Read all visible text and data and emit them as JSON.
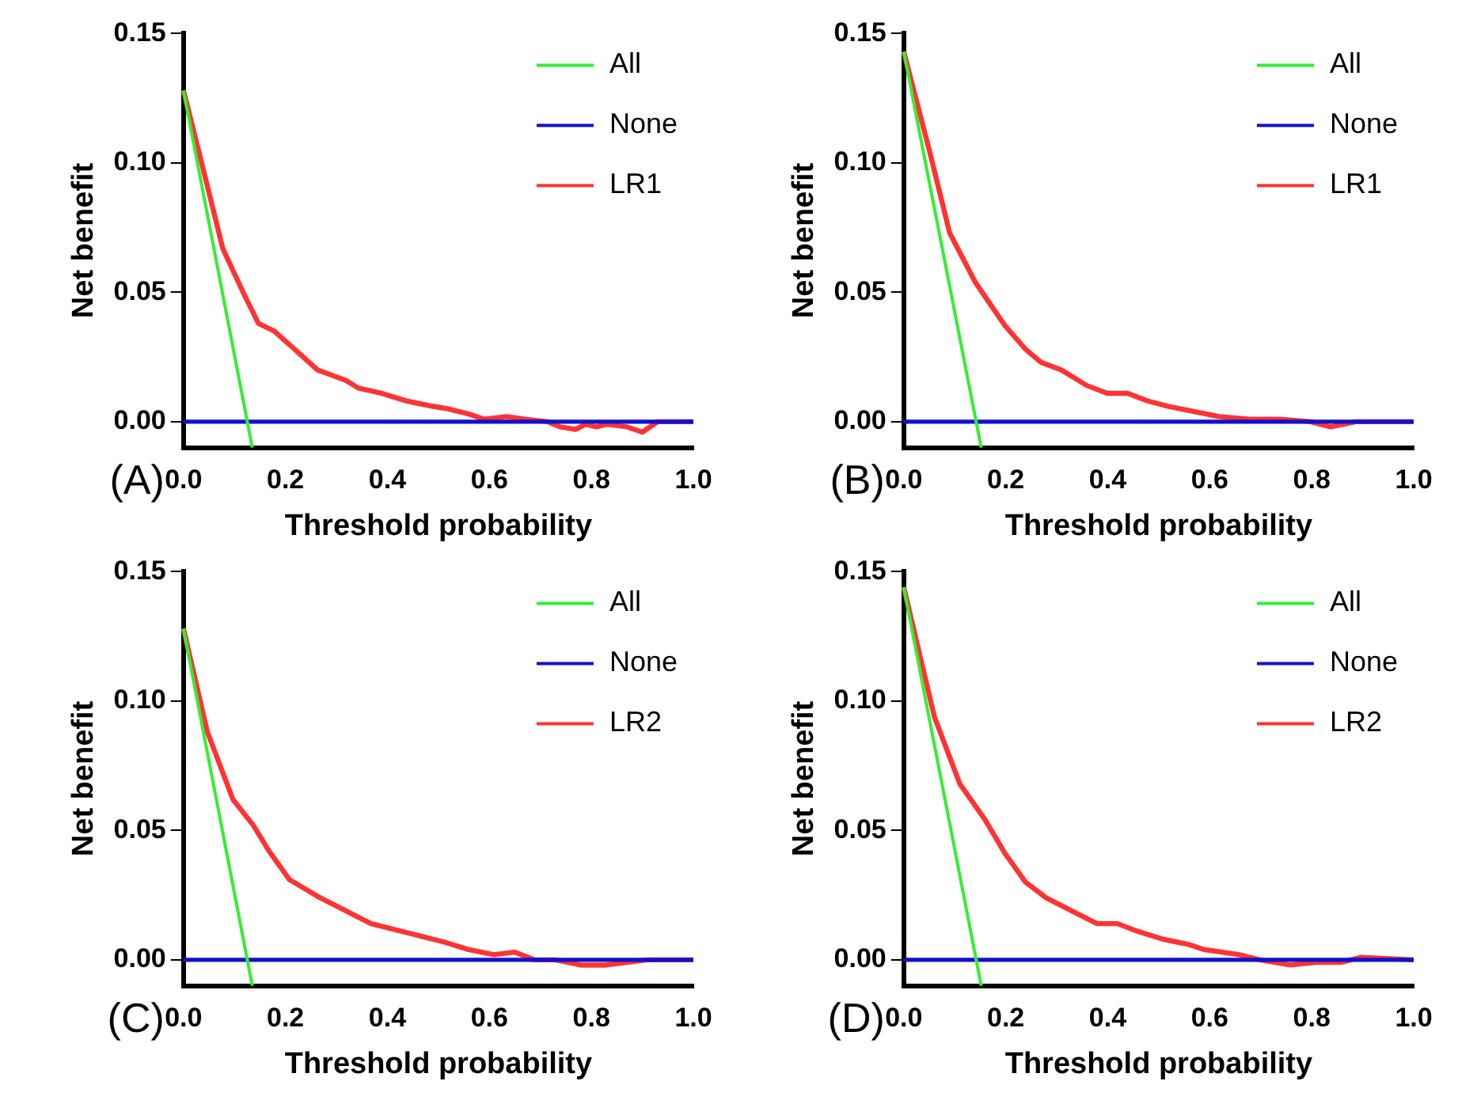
{
  "chart_data": [
    {
      "type": "line",
      "xlabel": "Threshold probability",
      "ylabel": "Net benefit",
      "annotations": [
        "(A)"
      ],
      "xlim": [
        0,
        1
      ],
      "ylim": [
        -0.01,
        0.15
      ],
      "xticks": [
        {
          "value": 0,
          "label": "0.0"
        },
        {
          "value": 0.2,
          "label": "0.2"
        },
        {
          "value": 0.4,
          "label": "0.4"
        },
        {
          "value": 0.6,
          "label": "0.6"
        },
        {
          "value": 0.8,
          "label": "0.8"
        },
        {
          "value": 1,
          "label": "1.0"
        }
      ],
      "yticks": [
        {
          "value": 0,
          "label": "0.00"
        },
        {
          "value": 0.05,
          "label": "0.05"
        },
        {
          "value": 0.1,
          "label": "0.10"
        },
        {
          "value": 0.15,
          "label": "0.15"
        }
      ],
      "grid": false,
      "legend": "top right",
      "marker": "none",
      "line_style": "solid",
      "series": [
        {
          "name": "All",
          "color": "#33ee33",
          "x": [
            0,
            0.135
          ],
          "values": [
            0.128,
            -0.01
          ]
        },
        {
          "name": "None",
          "color": "#1111cc",
          "x": [
            0,
            1
          ],
          "values": [
            0,
            0
          ]
        },
        {
          "name": "LR1",
          "color": "#ff3333",
          "x": [
            0,
            0.037,
            0.077,
            0.117,
            0.147,
            0.178,
            0.218,
            0.263,
            0.318,
            0.343,
            0.388,
            0.438,
            0.488,
            0.519,
            0.559,
            0.589,
            0.634,
            0.669,
            0.714,
            0.739,
            0.769,
            0.789,
            0.81,
            0.83,
            0.87,
            0.9,
            0.93,
            1
          ],
          "values": [
            0.128,
            0.099,
            0.067,
            0.05,
            0.038,
            0.035,
            0.028,
            0.02,
            0.016,
            0.013,
            0.011,
            0.008,
            0.006,
            0.005,
            0.003,
            0.001,
            0.002,
            0.001,
            0,
            -0.002,
            -0.003,
            -0.001,
            -0.002,
            -0.001,
            -0.002,
            -0.004,
            0,
            0
          ]
        }
      ]
    },
    {
      "type": "line",
      "xlabel": "Threshold probability",
      "ylabel": "Net benefit",
      "annotations": [
        "(B)"
      ],
      "xlim": [
        0,
        1
      ],
      "ylim": [
        -0.01,
        0.15
      ],
      "xticks": [
        {
          "value": 0,
          "label": "0.0"
        },
        {
          "value": 0.2,
          "label": "0.2"
        },
        {
          "value": 0.4,
          "label": "0.4"
        },
        {
          "value": 0.6,
          "label": "0.6"
        },
        {
          "value": 0.8,
          "label": "0.8"
        },
        {
          "value": 1,
          "label": "1.0"
        }
      ],
      "yticks": [
        {
          "value": 0,
          "label": "0.00"
        },
        {
          "value": 0.05,
          "label": "0.05"
        },
        {
          "value": 0.1,
          "label": "0.10"
        },
        {
          "value": 0.15,
          "label": "0.15"
        }
      ],
      "grid": false,
      "legend": "top right",
      "marker": "none",
      "line_style": "solid",
      "series": [
        {
          "name": "All",
          "color": "#33ee33",
          "x": [
            0,
            0.152
          ],
          "values": [
            0.143,
            -0.01
          ]
        },
        {
          "name": "None",
          "color": "#1111cc",
          "x": [
            0,
            1
          ],
          "values": [
            0,
            0
          ]
        },
        {
          "name": "LR1",
          "color": "#ff3333",
          "x": [
            0,
            0.05,
            0.09,
            0.14,
            0.199,
            0.239,
            0.269,
            0.309,
            0.359,
            0.399,
            0.439,
            0.479,
            0.518,
            0.568,
            0.618,
            0.678,
            0.738,
            0.798,
            0.837,
            0.887,
            1
          ],
          "values": [
            0.143,
            0.105,
            0.073,
            0.054,
            0.037,
            0.028,
            0.023,
            0.02,
            0.014,
            0.011,
            0.011,
            0.008,
            0.006,
            0.004,
            0.002,
            0.001,
            0.001,
            0,
            -0.002,
            0,
            0
          ]
        }
      ]
    },
    {
      "type": "line",
      "xlabel": "Threshold probability",
      "ylabel": "Net benefit",
      "annotations": [
        "(C)"
      ],
      "xlim": [
        0,
        1
      ],
      "ylim": [
        -0.01,
        0.15
      ],
      "xticks": [
        {
          "value": 0,
          "label": "0.0"
        },
        {
          "value": 0.2,
          "label": "0.2"
        },
        {
          "value": 0.4,
          "label": "0.4"
        },
        {
          "value": 0.6,
          "label": "0.6"
        },
        {
          "value": 0.8,
          "label": "0.8"
        },
        {
          "value": 1,
          "label": "1.0"
        }
      ],
      "yticks": [
        {
          "value": 0,
          "label": "0.00"
        },
        {
          "value": 0.05,
          "label": "0.05"
        },
        {
          "value": 0.1,
          "label": "0.10"
        },
        {
          "value": 0.15,
          "label": "0.15"
        }
      ],
      "grid": false,
      "legend": "top right",
      "marker": "none",
      "line_style": "solid",
      "series": [
        {
          "name": "All",
          "color": "#33ee33",
          "x": [
            0,
            0.135
          ],
          "values": [
            0.128,
            -0.01
          ]
        },
        {
          "name": "None",
          "color": "#1111cc",
          "x": [
            0,
            1
          ],
          "values": [
            0,
            0
          ]
        },
        {
          "name": "LR2",
          "color": "#ff3333",
          "x": [
            0,
            0.047,
            0.097,
            0.137,
            0.168,
            0.208,
            0.268,
            0.288,
            0.338,
            0.368,
            0.408,
            0.468,
            0.509,
            0.559,
            0.609,
            0.649,
            0.689,
            0.729,
            0.779,
            0.829,
            0.87,
            0.91,
            1
          ],
          "values": [
            0.128,
            0.088,
            0.062,
            0.052,
            0.042,
            0.031,
            0.024,
            0.022,
            0.017,
            0.014,
            0.012,
            0.009,
            0.007,
            0.004,
            0.002,
            0.003,
            0,
            0,
            -0.002,
            -0.002,
            -0.001,
            0,
            0
          ]
        }
      ]
    },
    {
      "type": "line",
      "xlabel": "Threshold probability",
      "ylabel": "Net benefit",
      "annotations": [
        "(D)"
      ],
      "xlim": [
        0,
        1
      ],
      "ylim": [
        -0.01,
        0.15
      ],
      "xticks": [
        {
          "value": 0,
          "label": "0.0"
        },
        {
          "value": 0.2,
          "label": "0.2"
        },
        {
          "value": 0.4,
          "label": "0.4"
        },
        {
          "value": 0.6,
          "label": "0.6"
        },
        {
          "value": 0.8,
          "label": "0.8"
        },
        {
          "value": 1,
          "label": "1.0"
        }
      ],
      "yticks": [
        {
          "value": 0,
          "label": "0.00"
        },
        {
          "value": 0.05,
          "label": "0.05"
        },
        {
          "value": 0.1,
          "label": "0.10"
        },
        {
          "value": 0.15,
          "label": "0.15"
        }
      ],
      "grid": false,
      "legend": "top right",
      "marker": "none",
      "line_style": "solid",
      "series": [
        {
          "name": "All",
          "color": "#33ee33",
          "x": [
            0,
            0.152
          ],
          "values": [
            0.144,
            -0.01
          ]
        },
        {
          "name": "None",
          "color": "#1111cc",
          "x": [
            0,
            1
          ],
          "values": [
            0,
            0
          ]
        },
        {
          "name": "LR2",
          "color": "#ff3333",
          "x": [
            0,
            0.06,
            0.11,
            0.16,
            0.199,
            0.239,
            0.279,
            0.339,
            0.379,
            0.419,
            0.459,
            0.508,
            0.558,
            0.588,
            0.658,
            0.698,
            0.758,
            0.808,
            0.857,
            0.897,
            1
          ],
          "values": [
            0.144,
            0.094,
            0.068,
            0.054,
            0.041,
            0.03,
            0.024,
            0.018,
            0.014,
            0.014,
            0.011,
            0.008,
            0.006,
            0.004,
            0.002,
            0,
            -0.002,
            -0.001,
            -0.001,
            0.001,
            0
          ]
        }
      ]
    }
  ]
}
